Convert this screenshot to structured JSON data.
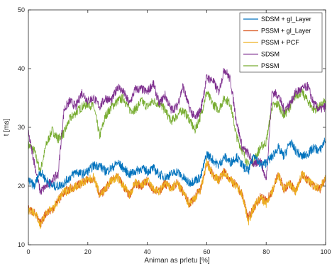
{
  "chart_data": {
    "type": "line",
    "title": "",
    "xlabel": "Animan as prletu [%]",
    "ylabel": "t [ms]",
    "xlim": [
      0,
      100
    ],
    "ylim": [
      10,
      50
    ],
    "xticks": [
      "0",
      "20",
      "40",
      "60",
      "80",
      "100"
    ],
    "yticks": [
      "10",
      "20",
      "30",
      "40",
      "50"
    ],
    "grid": false,
    "legend_position": "top-right",
    "x": [
      0,
      2,
      4,
      6,
      8,
      10,
      12,
      14,
      16,
      18,
      20,
      22,
      24,
      26,
      28,
      30,
      32,
      34,
      36,
      38,
      40,
      42,
      44,
      46,
      48,
      50,
      52,
      54,
      56,
      58,
      60,
      62,
      64,
      66,
      68,
      70,
      72,
      74,
      76,
      78,
      80,
      82,
      84,
      86,
      88,
      90,
      92,
      94,
      96,
      98,
      100
    ],
    "series": [
      {
        "name": "SDSM + gl_Layer",
        "color": "#0072bd",
        "values": [
          21.0,
          20.0,
          22.5,
          21.0,
          20.0,
          20.0,
          20.5,
          21.5,
          22.5,
          22.0,
          22.5,
          23.5,
          23.5,
          22.5,
          23.0,
          24.0,
          23.0,
          22.0,
          22.5,
          23.0,
          22.5,
          23.0,
          22.0,
          21.5,
          22.0,
          22.5,
          21.5,
          20.5,
          21.0,
          21.5,
          25.5,
          24.5,
          23.5,
          25.0,
          24.0,
          25.0,
          23.5,
          22.5,
          25.5,
          23.5,
          24.0,
          25.0,
          26.5,
          25.0,
          27.5,
          26.0,
          25.0,
          25.5,
          26.5,
          26.0,
          28.0
        ]
      },
      {
        "name": "PSSM + gl_Layer",
        "color": "#d95319",
        "values": [
          16.0,
          15.5,
          13.5,
          15.5,
          16.0,
          17.5,
          19.0,
          19.5,
          20.0,
          20.5,
          21.0,
          21.5,
          18.5,
          19.5,
          21.0,
          21.5,
          20.0,
          18.5,
          20.5,
          20.0,
          21.0,
          19.5,
          19.0,
          20.5,
          19.5,
          20.5,
          19.0,
          17.0,
          18.0,
          19.5,
          24.0,
          22.0,
          21.0,
          22.5,
          21.0,
          20.0,
          18.5,
          14.5,
          16.5,
          18.0,
          17.5,
          19.0,
          22.0,
          19.5,
          20.5,
          19.0,
          22.0,
          21.0,
          20.0,
          19.5,
          21.5
        ]
      },
      {
        "name": "PSSM + PCF",
        "color": "#edb120",
        "values": [
          16.0,
          15.5,
          13.5,
          15.5,
          16.0,
          17.5,
          19.0,
          19.5,
          20.0,
          20.5,
          21.0,
          21.5,
          18.5,
          19.5,
          21.0,
          21.5,
          20.0,
          18.5,
          20.5,
          20.0,
          21.0,
          19.5,
          19.0,
          20.5,
          19.5,
          20.5,
          19.0,
          17.0,
          18.0,
          19.5,
          24.0,
          22.0,
          21.0,
          22.5,
          21.0,
          20.0,
          18.5,
          14.0,
          16.5,
          18.0,
          17.0,
          19.0,
          22.0,
          19.5,
          20.5,
          19.0,
          22.0,
          21.0,
          20.0,
          19.5,
          21.5
        ]
      },
      {
        "name": "SDSM",
        "color": "#7e2f8e",
        "values": [
          29.0,
          24.0,
          19.0,
          20.0,
          21.0,
          22.0,
          33.0,
          34.5,
          33.5,
          36.0,
          34.5,
          35.0,
          33.5,
          35.0,
          34.5,
          37.0,
          36.0,
          34.0,
          36.5,
          36.5,
          36.0,
          37.5,
          34.0,
          35.5,
          33.0,
          33.5,
          37.0,
          33.5,
          31.5,
          33.0,
          38.5,
          38.0,
          36.0,
          40.0,
          38.0,
          31.0,
          26.5,
          25.5,
          23.5,
          24.5,
          21.0,
          36.0,
          35.5,
          33.0,
          34.0,
          36.0,
          36.5,
          37.0,
          34.0,
          33.0,
          33.5
        ]
      },
      {
        "name": "PSSM",
        "color": "#77ac30",
        "values": [
          27.0,
          26.0,
          22.5,
          27.0,
          29.5,
          28.0,
          29.0,
          31.5,
          32.5,
          33.5,
          34.0,
          33.5,
          28.5,
          32.0,
          33.5,
          34.5,
          35.0,
          33.0,
          33.0,
          34.5,
          33.5,
          34.5,
          34.0,
          33.0,
          31.0,
          32.0,
          33.0,
          31.5,
          29.5,
          32.0,
          36.0,
          34.0,
          33.0,
          35.0,
          34.0,
          28.5,
          26.0,
          23.5,
          24.5,
          26.5,
          27.5,
          33.5,
          34.0,
          32.0,
          33.5,
          35.5,
          36.0,
          34.5,
          33.0,
          33.5,
          34.5
        ]
      }
    ]
  }
}
